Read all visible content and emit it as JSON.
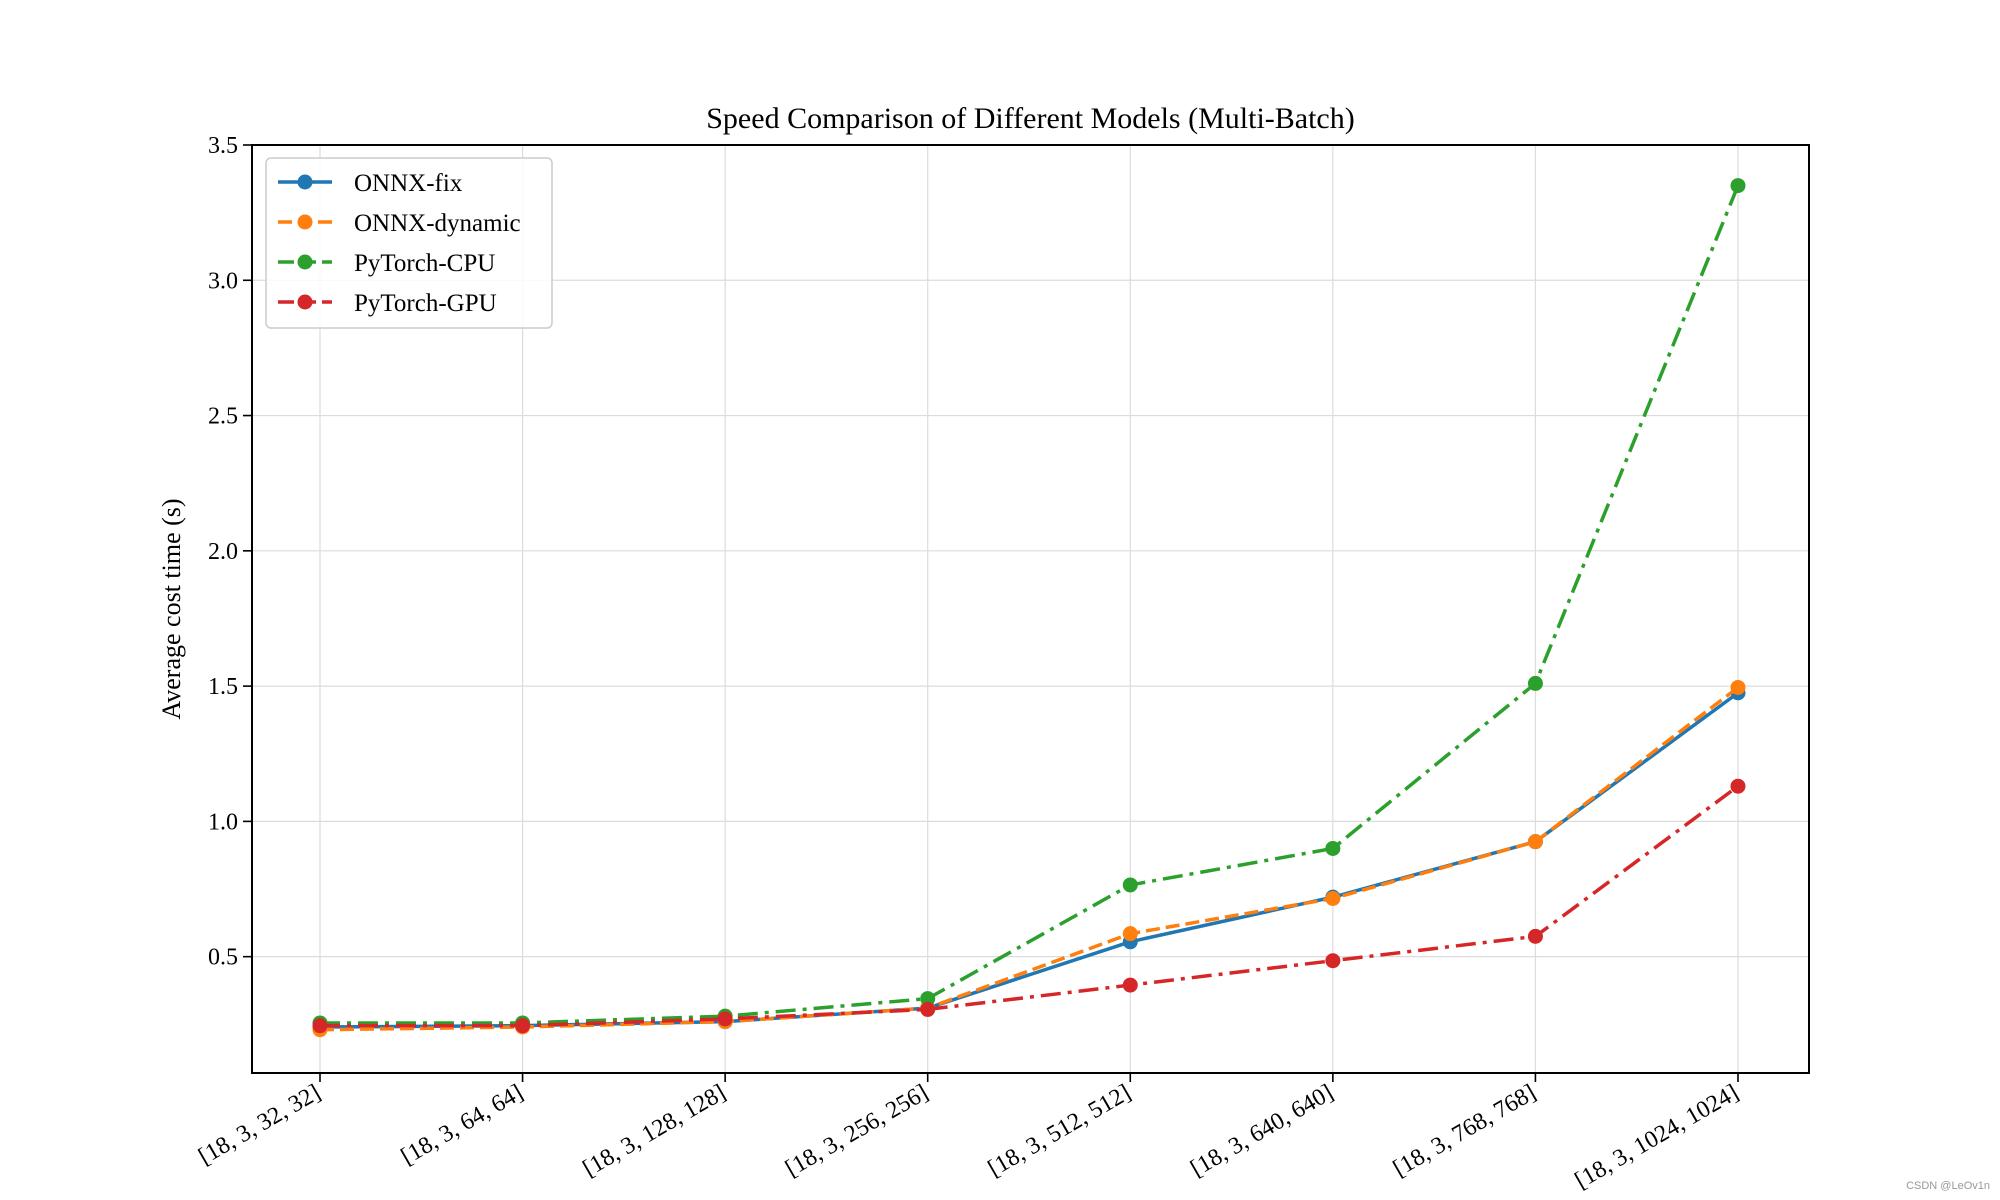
{
  "chart_data": {
    "type": "line",
    "title": "Speed Comparison of Different Models (Multi-Batch)",
    "xlabel": "",
    "ylabel": "Average cost time (s)",
    "categories": [
      "[18, 3, 32, 32]",
      "[18, 3, 64, 64]",
      "[18, 3, 128, 128]",
      "[18, 3, 256, 256]",
      "[18, 3, 512, 512]",
      "[18, 3, 640, 640]",
      "[18, 3, 768, 768]",
      "[18, 3, 1024, 1024]"
    ],
    "ylim": [
      0.07,
      3.5
    ],
    "yticks": [
      0.5,
      1.0,
      1.5,
      2.0,
      2.5,
      3.0,
      3.5
    ],
    "ytick_labels": [
      "0.5",
      "1.0",
      "1.5",
      "2.0",
      "2.5",
      "3.0",
      "3.5"
    ],
    "grid": true,
    "legend_position": "top-left",
    "series": [
      {
        "name": "ONNX-fix",
        "color": "#1f77b4",
        "style": "solid",
        "values": [
          0.24,
          0.245,
          0.26,
          0.31,
          0.555,
          0.72,
          0.925,
          1.475
        ]
      },
      {
        "name": "ONNX-dynamic",
        "color": "#ff7f0e",
        "style": "dashed",
        "values": [
          0.23,
          0.24,
          0.26,
          0.31,
          0.585,
          0.715,
          0.925,
          1.495
        ]
      },
      {
        "name": "PyTorch-CPU",
        "color": "#2ca02c",
        "style": "dashdot",
        "values": [
          0.255,
          0.255,
          0.28,
          0.345,
          0.765,
          0.9,
          1.51,
          3.35
        ]
      },
      {
        "name": "PyTorch-GPU",
        "color": "#d62728",
        "style": "dashdot",
        "values": [
          0.245,
          0.245,
          0.27,
          0.305,
          0.395,
          0.485,
          0.575,
          1.13
        ]
      }
    ]
  },
  "watermark": "CSDN @LeOv1n"
}
